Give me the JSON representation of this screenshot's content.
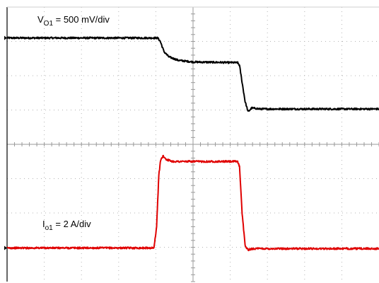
{
  "chart_data": {
    "type": "line",
    "title": "",
    "xlabel": "",
    "ylabel": "",
    "grid": true,
    "legend": "none",
    "x_divisions": 10,
    "y_divisions": 8,
    "xlim": [
      0,
      10
    ],
    "ylim": [
      0,
      8
    ],
    "units": "divisions",
    "series": [
      {
        "label_main": "V",
        "label_sub": "O1",
        "label_rest": " = 500 mV/div",
        "color": "#000000",
        "points": [
          [
            0,
            7.1
          ],
          [
            4.05,
            7.1
          ],
          [
            4.12,
            7.0
          ],
          [
            4.22,
            6.7
          ],
          [
            4.35,
            6.55
          ],
          [
            4.6,
            6.45
          ],
          [
            5.0,
            6.4
          ],
          [
            6.2,
            6.38
          ],
          [
            6.25,
            6.3
          ],
          [
            6.32,
            5.8
          ],
          [
            6.4,
            5.25
          ],
          [
            6.48,
            4.95
          ],
          [
            6.58,
            5.06
          ],
          [
            6.8,
            5.03
          ],
          [
            10,
            5.03
          ]
        ]
      },
      {
        "label_main": "I",
        "label_sub": "o1",
        "label_rest": " = 2 A/div",
        "color": "#e00000",
        "points": [
          [
            0,
            0.98
          ],
          [
            3.95,
            0.98
          ],
          [
            4.02,
            1.6
          ],
          [
            4.08,
            3.1
          ],
          [
            4.13,
            3.55
          ],
          [
            4.2,
            3.66
          ],
          [
            4.28,
            3.56
          ],
          [
            4.45,
            3.5
          ],
          [
            6.2,
            3.5
          ],
          [
            6.25,
            3.35
          ],
          [
            6.32,
            2.0
          ],
          [
            6.4,
            1.05
          ],
          [
            6.48,
            0.92
          ],
          [
            6.6,
            0.96
          ],
          [
            10,
            0.96
          ]
        ]
      }
    ]
  }
}
